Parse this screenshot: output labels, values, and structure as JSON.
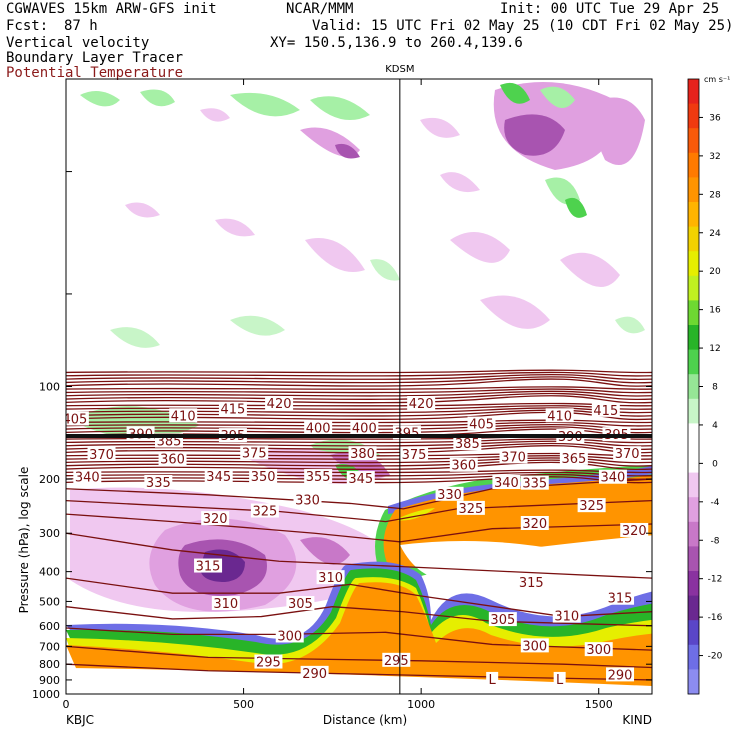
{
  "header": {
    "model": "CGWAVES 15km ARW-GFS init",
    "org": "NCAR/MMM",
    "init": "Init: 00 UTC Tue 29 Apr 25",
    "fcst_label": "Fcst:",
    "fcst_value": "87 h",
    "valid": "Valid: 15 UTC Fri 02 May 25 (10 CDT Fri 02 May 25)",
    "field1": "Vertical velocity",
    "field2": "Boundary Layer Tracer",
    "field3": "Potential Temperature",
    "xy": "XY= 150.5,136.9 to 260.4,139.6",
    "field3_color": "#8b1a1a"
  },
  "chart_data": {
    "type": "heatmap",
    "title": "",
    "xlabel": "Distance (km)",
    "ylabel": "Pressure (hPa), log scale",
    "xlim": [
      0,
      1650
    ],
    "x_ticks": [
      0,
      500,
      1000,
      1500
    ],
    "x_tick_labels": [
      "0",
      "500",
      "1000",
      "1500"
    ],
    "ylim": [
      1000,
      10
    ],
    "y_scale": "log",
    "y_ticks": [
      100,
      200,
      300,
      400,
      500,
      600,
      700,
      800,
      900,
      1000
    ],
    "y_tick_labels": [
      "100",
      "200",
      "300",
      "400",
      "500",
      "600",
      "700",
      "800",
      "900",
      "1000"
    ],
    "left_endpoint": "KBJC",
    "right_endpoint": "KIND",
    "station_marker": {
      "label": "KDSM",
      "x_km": 940
    },
    "colorbar": {
      "unit": "cm s⁻¹",
      "tick_values": [
        36,
        32,
        28,
        24,
        20,
        16,
        12,
        8,
        4,
        0,
        -4,
        -8,
        -12,
        -16,
        -20
      ],
      "colors": [
        "#e6231c",
        "#f03a10",
        "#f85a0a",
        "#ff7a00",
        "#ff9400",
        "#ffb400",
        "#f2d200",
        "#e6ee00",
        "#c0f020",
        "#6ed832",
        "#28b428",
        "#4ed24e",
        "#96e696",
        "#c8f5c8",
        "#ffffff",
        "#ffffff",
        "#f0c8f0",
        "#e0a0e0",
        "#c878c8",
        "#a854b0",
        "#8a32a0",
        "#6a2890",
        "#5a46c8",
        "#6e6ee6",
        "#8c8cf0"
      ]
    },
    "theta_color": "#7a1010",
    "theta_labels": [
      {
        "text": "405",
        "x": 25,
        "p": 128
      },
      {
        "text": "410",
        "x": 330,
        "p": 125
      },
      {
        "text": "415",
        "x": 470,
        "p": 119
      },
      {
        "text": "420",
        "x": 600,
        "p": 114
      },
      {
        "text": "420",
        "x": 1000,
        "p": 114
      },
      {
        "text": "410",
        "x": 1390,
        "p": 125
      },
      {
        "text": "415",
        "x": 1520,
        "p": 120
      },
      {
        "text": "390",
        "x": 210,
        "p": 143
      },
      {
        "text": "400",
        "x": 710,
        "p": 137
      },
      {
        "text": "400",
        "x": 840,
        "p": 137
      },
      {
        "text": "395",
        "x": 960,
        "p": 142
      },
      {
        "text": "405",
        "x": 1170,
        "p": 133
      },
      {
        "text": "390",
        "x": 1420,
        "p": 146
      },
      {
        "text": "395",
        "x": 1550,
        "p": 144
      },
      {
        "text": "385",
        "x": 290,
        "p": 151
      },
      {
        "text": "395",
        "x": 470,
        "p": 145
      },
      {
        "text": "385",
        "x": 1130,
        "p": 154
      },
      {
        "text": "370",
        "x": 100,
        "p": 167
      },
      {
        "text": "360",
        "x": 300,
        "p": 173
      },
      {
        "text": "375",
        "x": 530,
        "p": 165
      },
      {
        "text": "380",
        "x": 835,
        "p": 166
      },
      {
        "text": "375",
        "x": 980,
        "p": 167
      },
      {
        "text": "370",
        "x": 1260,
        "p": 170
      },
      {
        "text": "365",
        "x": 1430,
        "p": 172
      },
      {
        "text": "370",
        "x": 1580,
        "p": 166
      },
      {
        "text": "360",
        "x": 1120,
        "p": 181
      },
      {
        "text": "340",
        "x": 60,
        "p": 198
      },
      {
        "text": "345",
        "x": 430,
        "p": 197
      },
      {
        "text": "350",
        "x": 555,
        "p": 197
      },
      {
        "text": "355",
        "x": 710,
        "p": 197
      },
      {
        "text": "345",
        "x": 830,
        "p": 200
      },
      {
        "text": "335",
        "x": 260,
        "p": 206
      },
      {
        "text": "340",
        "x": 1540,
        "p": 198
      },
      {
        "text": "340",
        "x": 1240,
        "p": 206
      },
      {
        "text": "335",
        "x": 1320,
        "p": 207
      },
      {
        "text": "330",
        "x": 1080,
        "p": 225
      },
      {
        "text": "330",
        "x": 680,
        "p": 235
      },
      {
        "text": "325",
        "x": 560,
        "p": 255
      },
      {
        "text": "325",
        "x": 1140,
        "p": 250
      },
      {
        "text": "325",
        "x": 1480,
        "p": 245
      },
      {
        "text": "320",
        "x": 420,
        "p": 270
      },
      {
        "text": "320",
        "x": 1320,
        "p": 280
      },
      {
        "text": "320",
        "x": 1600,
        "p": 295
      },
      {
        "text": "315",
        "x": 400,
        "p": 385
      },
      {
        "text": "310",
        "x": 745,
        "p": 420
      },
      {
        "text": "310",
        "x": 450,
        "p": 510
      },
      {
        "text": "315",
        "x": 1310,
        "p": 435
      },
      {
        "text": "315",
        "x": 1560,
        "p": 490
      },
      {
        "text": "310",
        "x": 1410,
        "p": 560
      },
      {
        "text": "305",
        "x": 660,
        "p": 510
      },
      {
        "text": "305",
        "x": 1230,
        "p": 575
      },
      {
        "text": "300",
        "x": 630,
        "p": 650
      },
      {
        "text": "300",
        "x": 1320,
        "p": 700
      },
      {
        "text": "300",
        "x": 1500,
        "p": 720
      },
      {
        "text": "295",
        "x": 570,
        "p": 790
      },
      {
        "text": "295",
        "x": 930,
        "p": 780
      },
      {
        "text": "290",
        "x": 700,
        "p": 860
      },
      {
        "text": "290",
        "x": 1560,
        "p": 870
      },
      {
        "text": "L",
        "x": 1200,
        "p": 900
      },
      {
        "text": "L",
        "x": 1390,
        "p": 900
      }
    ]
  }
}
